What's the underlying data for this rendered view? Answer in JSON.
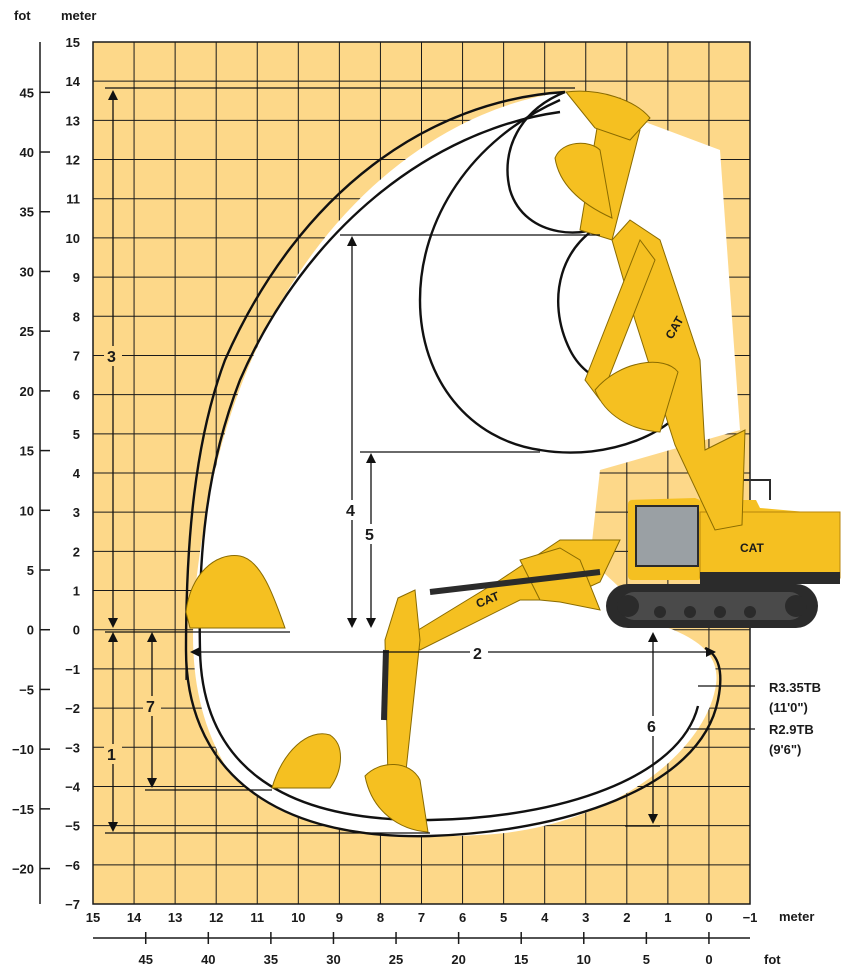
{
  "units": {
    "left_outer": "fot",
    "left_inner": "meter",
    "bottom_meter": "meter",
    "bottom_feet": "fot"
  },
  "axes": {
    "y_meter_ticks": [
      "15",
      "14",
      "13",
      "12",
      "11",
      "10",
      "9",
      "8",
      "7",
      "6",
      "5",
      "4",
      "3",
      "2",
      "1",
      "0",
      "−1",
      "−2",
      "−3",
      "−4",
      "−5",
      "−6",
      "−7"
    ],
    "y_feet_ticks": [
      "45",
      "40",
      "35",
      "30",
      "25",
      "20",
      "15",
      "10",
      "5",
      "0",
      "−5",
      "−10",
      "−15",
      "−20"
    ],
    "x_meter_ticks": [
      "15",
      "14",
      "13",
      "12",
      "11",
      "10",
      "9",
      "8",
      "7",
      "6",
      "5",
      "4",
      "3",
      "2",
      "1",
      "0",
      "−1"
    ],
    "x_feet_ticks": [
      "45",
      "40",
      "35",
      "30",
      "25",
      "20",
      "15",
      "10",
      "5",
      "0"
    ]
  },
  "dimension_labels": {
    "d1": "1",
    "d2": "2",
    "d3": "3",
    "d4": "4",
    "d5": "5",
    "d6": "6",
    "d7": "7"
  },
  "stick_options": [
    {
      "name": "R3.35TB",
      "length": "(11'0\")"
    },
    {
      "name": "R2.9TB",
      "length": "(9'6\")"
    }
  ],
  "colors": {
    "grid_fill": "#fdd889",
    "grid_line": "#1a1a1a",
    "machine_yellow": "#f5c021",
    "machine_dark": "#2b2b2b"
  }
}
